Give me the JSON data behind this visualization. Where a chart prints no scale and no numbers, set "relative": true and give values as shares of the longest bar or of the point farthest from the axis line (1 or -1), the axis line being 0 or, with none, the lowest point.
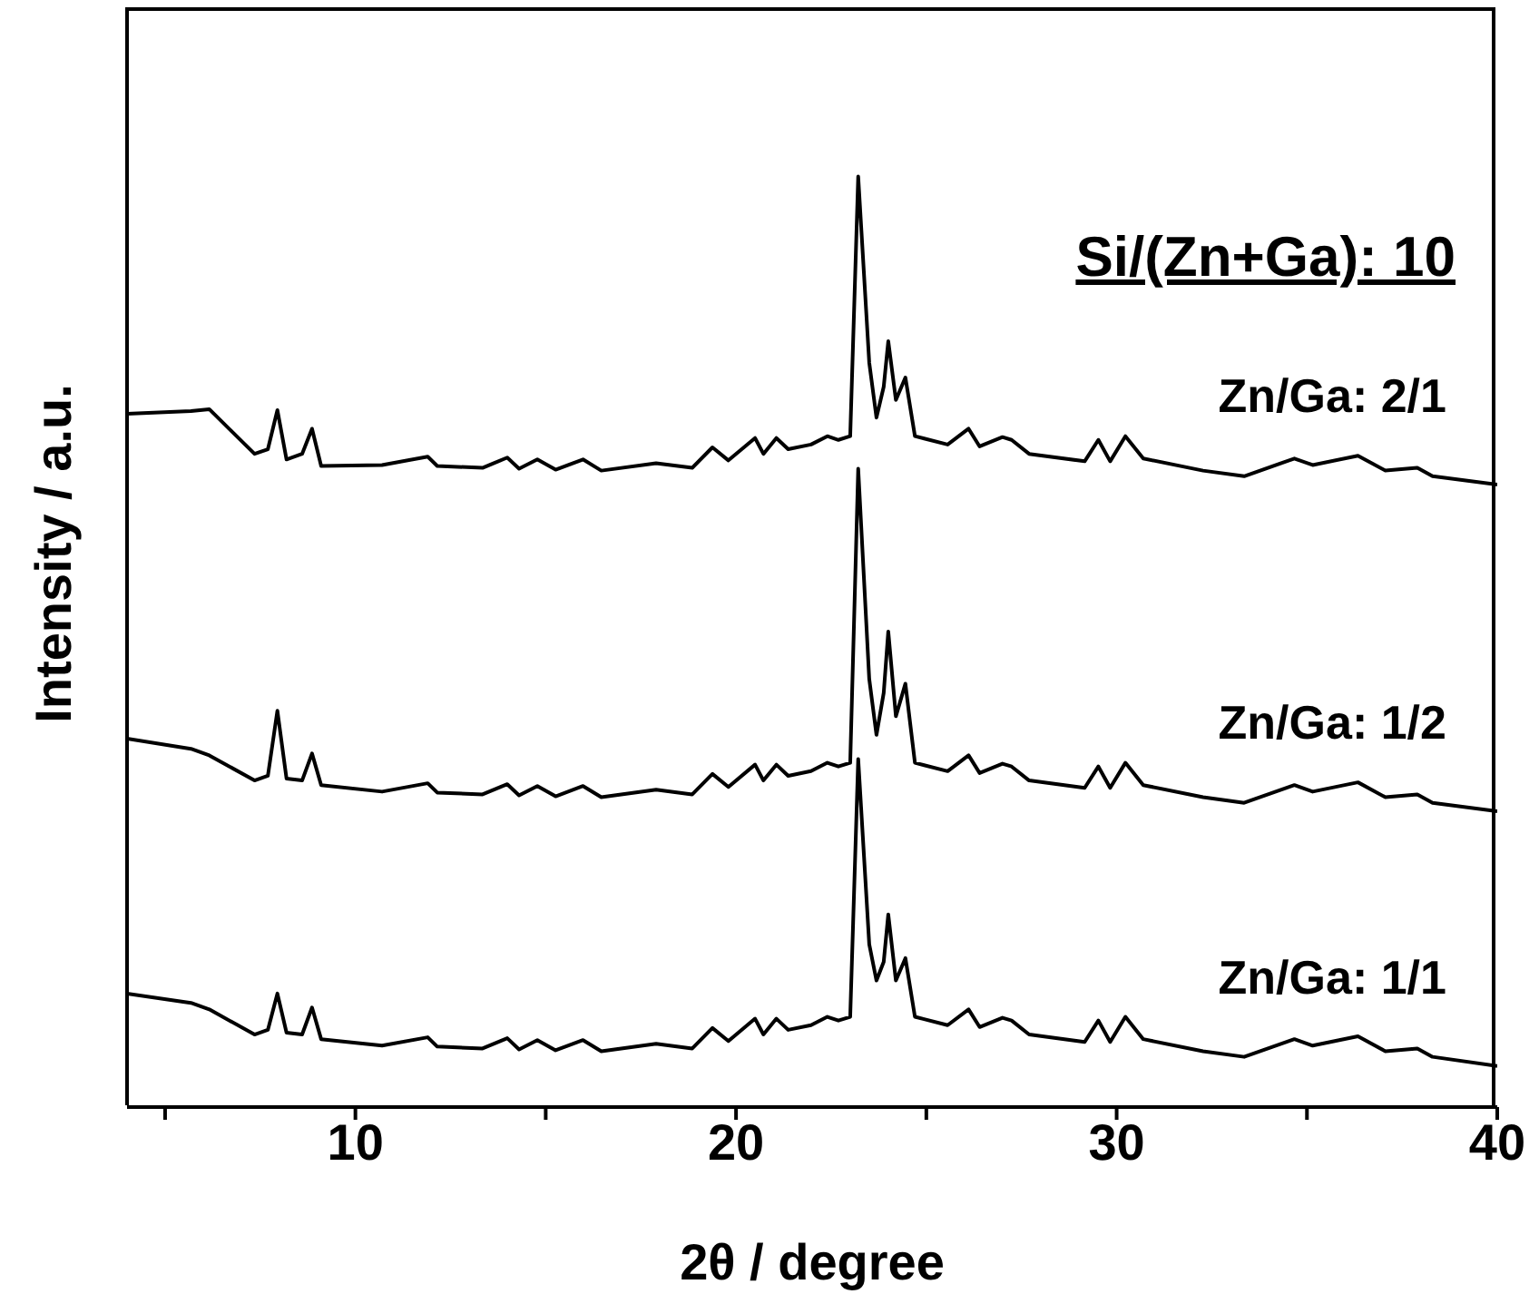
{
  "chart_data": {
    "type": "line",
    "relative": true,
    "title": "Si/(Zn+Ga): 10",
    "xlabel": "2θ / degree",
    "ylabel": "Intensity / a.u.",
    "xlim": [
      4,
      40
    ],
    "xticks": [
      {
        "value": 5,
        "label": null
      },
      10,
      {
        "value": 15,
        "label": null
      },
      20,
      {
        "value": 25,
        "label": null
      },
      30,
      {
        "value": 35,
        "label": null
      },
      40
    ],
    "x": [
      4.0,
      5.68,
      6.16,
      7.35,
      7.7,
      7.95,
      8.19,
      8.6,
      8.86,
      9.1,
      10.7,
      11.9,
      12.15,
      13.34,
      13.99,
      14.3,
      14.78,
      15.26,
      15.98,
      16.46,
      17.9,
      18.85,
      19.38,
      19.8,
      20.5,
      20.72,
      21.06,
      21.37,
      21.97,
      22.4,
      22.69,
      23.0,
      23.21,
      23.5,
      23.69,
      23.88,
      24.0,
      24.2,
      24.45,
      24.7,
      25.56,
      26.11,
      26.4,
      27.0,
      27.24,
      27.7,
      29.16,
      29.52,
      29.83,
      30.23,
      30.7,
      32.27,
      33.35,
      34.67,
      35.15,
      36.34,
      37.06,
      37.9,
      38.3,
      40
    ],
    "series": [
      {
        "name": "Zn/Ga: 2/1",
        "color": "#000000",
        "values": [
          0.745,
          0.748,
          0.75,
          0.702,
          0.707,
          0.749,
          0.696,
          0.702,
          0.729,
          0.689,
          0.69,
          0.699,
          0.689,
          0.687,
          0.698,
          0.686,
          0.696,
          0.685,
          0.696,
          0.684,
          0.692,
          0.687,
          0.709,
          0.695,
          0.719,
          0.702,
          0.719,
          0.707,
          0.712,
          0.721,
          0.717,
          0.721,
          1.0,
          0.8,
          0.741,
          0.774,
          0.823,
          0.76,
          0.784,
          0.721,
          0.712,
          0.729,
          0.71,
          0.72,
          0.717,
          0.702,
          0.694,
          0.717,
          0.694,
          0.721,
          0.697,
          0.684,
          0.678,
          0.697,
          0.69,
          0.7,
          0.684,
          0.687,
          0.678,
          0.669
        ]
      },
      {
        "name": "Zn/Ga: 1/2",
        "color": "#000000",
        "values": [
          0.396,
          0.385,
          0.378,
          0.351,
          0.356,
          0.426,
          0.353,
          0.351,
          0.38,
          0.346,
          0.339,
          0.348,
          0.338,
          0.336,
          0.347,
          0.335,
          0.345,
          0.334,
          0.345,
          0.333,
          0.341,
          0.336,
          0.358,
          0.344,
          0.368,
          0.351,
          0.368,
          0.356,
          0.361,
          0.37,
          0.366,
          0.37,
          0.686,
          0.46,
          0.4,
          0.445,
          0.511,
          0.42,
          0.455,
          0.37,
          0.361,
          0.378,
          0.359,
          0.369,
          0.366,
          0.351,
          0.343,
          0.366,
          0.343,
          0.37,
          0.346,
          0.333,
          0.327,
          0.346,
          0.339,
          0.349,
          0.333,
          0.336,
          0.327,
          0.318
        ]
      },
      {
        "name": "Zn/Ga: 1/1",
        "color": "#000000",
        "values": [
          0.122,
          0.112,
          0.105,
          0.078,
          0.083,
          0.122,
          0.08,
          0.078,
          0.107,
          0.073,
          0.066,
          0.075,
          0.065,
          0.063,
          0.074,
          0.062,
          0.072,
          0.061,
          0.072,
          0.06,
          0.068,
          0.063,
          0.085,
          0.071,
          0.095,
          0.078,
          0.095,
          0.083,
          0.088,
          0.097,
          0.093,
          0.097,
          0.374,
          0.175,
          0.136,
          0.156,
          0.207,
          0.136,
          0.16,
          0.097,
          0.088,
          0.105,
          0.086,
          0.096,
          0.093,
          0.078,
          0.07,
          0.093,
          0.07,
          0.097,
          0.073,
          0.06,
          0.054,
          0.073,
          0.066,
          0.076,
          0.06,
          0.063,
          0.054,
          0.044
        ]
      }
    ]
  }
}
